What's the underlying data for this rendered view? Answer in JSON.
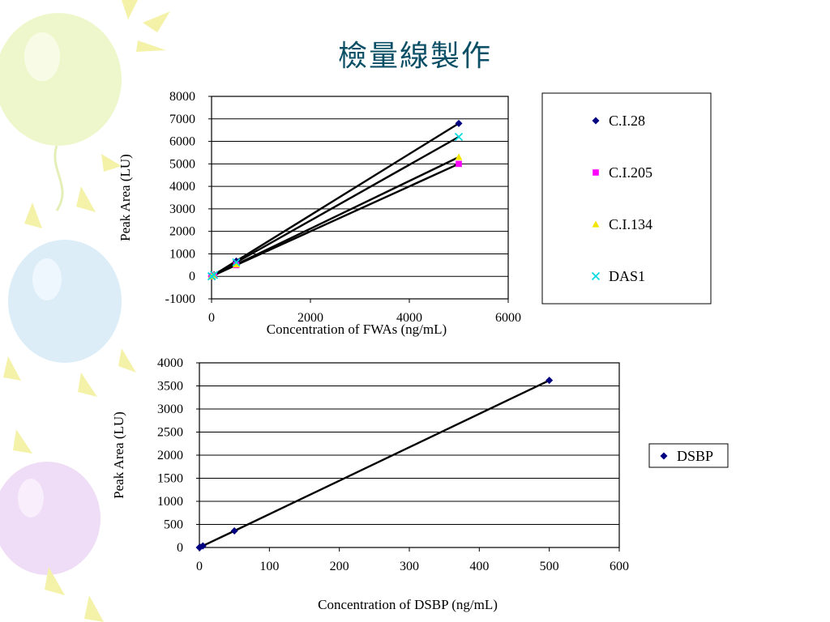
{
  "slide": {
    "title": "檢量線製作"
  },
  "colors": {
    "navy": "#000080",
    "magenta": "#ff00ff",
    "yellow": "#f2e600",
    "cyan": "#00d8e0",
    "balloon_green": "#ecf6c8",
    "balloon_blue": "#d8ecfa",
    "balloon_purple": "#ecd6f4",
    "sun": "#f4f2a0"
  },
  "chart_data": [
    {
      "type": "line",
      "title": "",
      "xlabel": "Concentration of FWAs (ng/mL)",
      "ylabel": "Peak Area (LU)",
      "xlim": [
        0,
        6000
      ],
      "ylim": [
        -1000,
        8000
      ],
      "xticks": [
        0,
        2000,
        4000,
        6000
      ],
      "yticks": [
        -1000,
        0,
        1000,
        2000,
        3000,
        4000,
        5000,
        6000,
        7000,
        8000
      ],
      "grid": true,
      "legend_position": "right",
      "series": [
        {
          "name": "C.I.28",
          "marker": "diamond",
          "color": "#000080",
          "points": [
            [
              0,
              0
            ],
            [
              5,
              7
            ],
            [
              50,
              70
            ],
            [
              500,
              680
            ],
            [
              5000,
              6800
            ]
          ]
        },
        {
          "name": "C.I.205",
          "marker": "square",
          "color": "#ff00ff",
          "points": [
            [
              0,
              0
            ],
            [
              5,
              5
            ],
            [
              50,
              50
            ],
            [
              500,
              500
            ],
            [
              5000,
              5000
            ]
          ]
        },
        {
          "name": "C.I.134",
          "marker": "triangle",
          "color": "#f2e600",
          "points": [
            [
              0,
              0
            ],
            [
              5,
              5
            ],
            [
              50,
              53
            ],
            [
              500,
              530
            ],
            [
              5000,
              5300
            ]
          ]
        },
        {
          "name": "DAS1",
          "marker": "x",
          "color": "#00d8e0",
          "points": [
            [
              0,
              0
            ],
            [
              5,
              6
            ],
            [
              50,
              62
            ],
            [
              500,
              620
            ],
            [
              5000,
              6200
            ]
          ]
        }
      ]
    },
    {
      "type": "line",
      "title": "",
      "xlabel": "Concentration of DSBP (ng/mL)",
      "ylabel": "Peak Area (LU)",
      "xlim": [
        0,
        600
      ],
      "ylim": [
        0,
        4000
      ],
      "xticks": [
        0,
        100,
        200,
        300,
        400,
        500,
        600
      ],
      "yticks": [
        0,
        500,
        1000,
        1500,
        2000,
        2500,
        3000,
        3500,
        4000
      ],
      "grid": true,
      "legend_position": "right",
      "series": [
        {
          "name": "DSBP",
          "marker": "diamond",
          "color": "#000080",
          "points": [
            [
              0,
              0
            ],
            [
              1,
              7
            ],
            [
              5,
              36
            ],
            [
              50,
              360
            ],
            [
              500,
              3620
            ]
          ]
        }
      ]
    }
  ]
}
